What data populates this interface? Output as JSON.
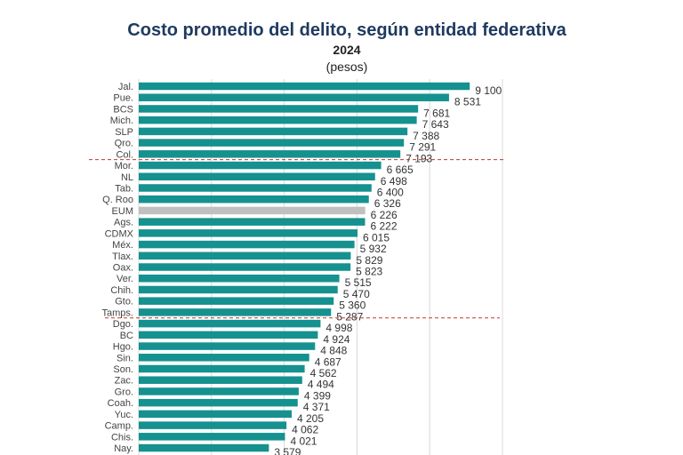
{
  "chart_data": {
    "type": "bar",
    "orientation": "horizontal",
    "title": "Costo promedio del delito, según entidad federativa",
    "subtitle": "2024",
    "unit_label": "(pesos)",
    "xlim": [
      0,
      10000
    ],
    "grid": true,
    "categories": [
      "Jal.",
      "Pue.",
      "BCS",
      "Mich.",
      "SLP",
      "Qro.",
      "Col.",
      "Mor.",
      "NL",
      "Tab.",
      "Q. Roo",
      "EUM",
      "Ags.",
      "CDMX",
      "Méx.",
      "Tlax.",
      "Oax.",
      "Ver.",
      "Chih.",
      "Gto.",
      "Tamps.",
      "Dgo.",
      "BC",
      "Hgo.",
      "Sin.",
      "Son.",
      "Zac.",
      "Gro.",
      "Coah.",
      "Yuc.",
      "Camp.",
      "Chis.",
      "Nay."
    ],
    "values": [
      9100,
      8531,
      7681,
      7643,
      7388,
      7291,
      7193,
      6665,
      6498,
      6400,
      6326,
      6226,
      6222,
      6015,
      5932,
      5829,
      5823,
      5515,
      5470,
      5360,
      5287,
      4998,
      4924,
      4848,
      4687,
      4562,
      4494,
      4399,
      4371,
      4205,
      4062,
      4021,
      3579
    ],
    "value_labels": [
      "9 100",
      "8 531",
      "7 681",
      "7 643",
      "7 388",
      "7 291",
      "7 193",
      "6 665",
      "6 498",
      "6 400",
      "6 326",
      "6 226",
      "6 222",
      "6 015",
      "5 932",
      "5 829",
      "5 823",
      "5 515",
      "5 470",
      "5 360",
      "5 287",
      "4 998",
      "4 924",
      "4 848",
      "4 687",
      "4 562",
      "4 494",
      "4 399",
      "4 371",
      "4 205",
      "4 062",
      "4 021",
      "3 579"
    ],
    "highlight_category": "EUM",
    "separators_after": [
      "Col.",
      "Tamps."
    ],
    "colors": {
      "bar": "#15918f",
      "highlight": "#c0c0c0",
      "separator": "#c0392b",
      "grid": "#d9d9d9",
      "title": "#1f3a5f"
    }
  }
}
